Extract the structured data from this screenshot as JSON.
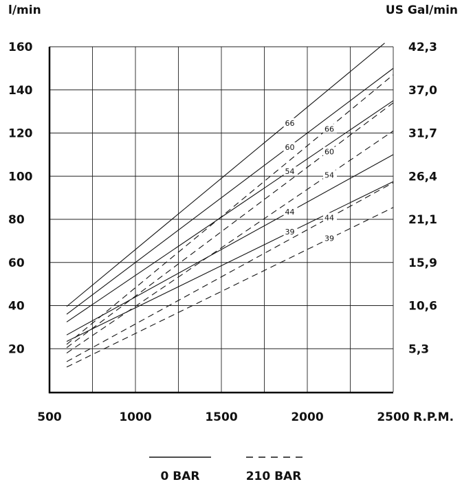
{
  "chart_data": {
    "type": "line",
    "left_axis_unit": "l/min",
    "right_axis_unit": "US Gal/min",
    "x_axis_unit": "R.P.M.",
    "x_ticks": [
      500,
      1000,
      1500,
      2000,
      2500
    ],
    "y_ticks": [
      20,
      40,
      60,
      80,
      100,
      120,
      140,
      160
    ],
    "right_ticks": [
      {
        "y": 20,
        "label": "5,3"
      },
      {
        "y": 40,
        "label": "10,6"
      },
      {
        "y": 60,
        "label": "15,9"
      },
      {
        "y": 80,
        "label": "21,1"
      },
      {
        "y": 100,
        "label": "26,4"
      },
      {
        "y": 120,
        "label": "31,7"
      },
      {
        "y": 140,
        "label": "37,0"
      },
      {
        "y": 160,
        "label": "42,3"
      }
    ],
    "xlim": [
      500,
      2500
    ],
    "ylim": [
      0,
      160
    ],
    "grid": true,
    "legend": [
      {
        "style": "solid",
        "label": "0 BAR"
      },
      {
        "style": "dashed",
        "label": "210 BAR"
      }
    ],
    "series": [
      {
        "name": "66",
        "condition": "0 BAR",
        "style": "solid",
        "x": [
          600,
          2450
        ],
        "y": [
          39.6,
          161.7
        ],
        "label_at": 1870
      },
      {
        "name": "60",
        "condition": "0 BAR",
        "style": "solid",
        "x": [
          600,
          2500
        ],
        "y": [
          36.0,
          150.0
        ],
        "label_at": 1870
      },
      {
        "name": "54",
        "condition": "0 BAR",
        "style": "solid",
        "x": [
          600,
          2500
        ],
        "y": [
          32.4,
          135.0
        ],
        "label_at": 1870
      },
      {
        "name": "44",
        "condition": "0 BAR",
        "style": "solid",
        "x": [
          600,
          2500
        ],
        "y": [
          26.4,
          110.0
        ],
        "label_at": 1870
      },
      {
        "name": "39",
        "condition": "0 BAR",
        "style": "solid",
        "x": [
          600,
          2500
        ],
        "y": [
          23.4,
          97.5
        ],
        "label_at": 1870
      },
      {
        "name": "66",
        "condition": "210 BAR",
        "style": "dashed",
        "x": [
          600,
          2500
        ],
        "y": [
          22.0,
          147.0
        ],
        "label_at": 2100
      },
      {
        "name": "60",
        "condition": "210 BAR",
        "style": "dashed",
        "x": [
          600,
          2500
        ],
        "y": [
          20.5,
          134.0
        ],
        "label_at": 2100
      },
      {
        "name": "54",
        "condition": "210 BAR",
        "style": "dashed",
        "x": [
          600,
          2500
        ],
        "y": [
          18.0,
          121.0
        ],
        "label_at": 2100
      },
      {
        "name": "44",
        "condition": "210 BAR",
        "style": "dashed",
        "x": [
          600,
          2500
        ],
        "y": [
          14.0,
          97.0
        ],
        "label_at": 2100
      },
      {
        "name": "39",
        "condition": "210 BAR",
        "style": "dashed",
        "x": [
          600,
          2500
        ],
        "y": [
          11.5,
          85.5
        ],
        "label_at": 2100
      }
    ]
  }
}
